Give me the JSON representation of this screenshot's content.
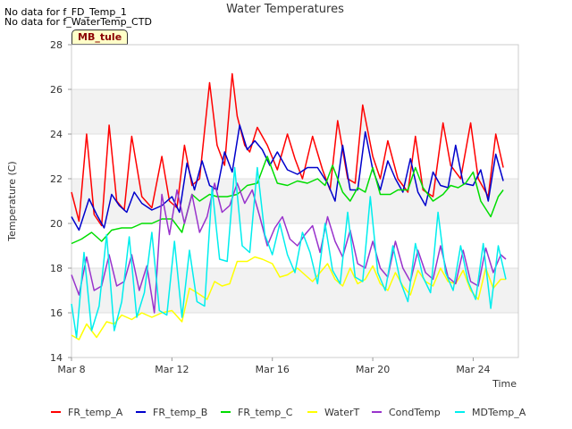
{
  "notices": [
    "No data for f_FD_Temp_1",
    "No data for f_WaterTemp_CTD"
  ],
  "site_label": "MB_tule",
  "chart_data": {
    "type": "line",
    "title": "Water Temperatures",
    "xlabel": "Time",
    "ylabel": "Temperature (C)",
    "xlim": [
      8,
      25.8
    ],
    "ylim": [
      14,
      28
    ],
    "x_ticks": [
      8,
      12,
      16,
      20,
      24
    ],
    "x_tick_labels": [
      "Mar 8",
      "Mar 12",
      "Mar 16",
      "Mar 20",
      "Mar 24"
    ],
    "y_ticks": [
      14,
      16,
      18,
      20,
      22,
      24,
      26,
      28
    ],
    "grid": "horizontal bands",
    "legend_position": "bottom",
    "series": [
      {
        "name": "FR_temp_A",
        "color": "#ff0000",
        "x": [
          8.0,
          8.3,
          8.6,
          8.9,
          9.2,
          9.5,
          9.8,
          10.1,
          10.4,
          10.8,
          11.2,
          11.6,
          11.9,
          12.2,
          12.5,
          12.8,
          13.1,
          13.5,
          13.8,
          14.1,
          14.4,
          14.6,
          14.9,
          15.1,
          15.4,
          15.8,
          16.2,
          16.6,
          16.9,
          17.2,
          17.6,
          18.0,
          18.3,
          18.6,
          19.0,
          19.3,
          19.6,
          20.0,
          20.3,
          20.6,
          21.0,
          21.4,
          21.7,
          22.0,
          22.4,
          22.8,
          23.1,
          23.5,
          23.9,
          24.2,
          24.6,
          24.9,
          25.2
        ],
        "y": [
          21.4,
          20.1,
          24.0,
          20.4,
          19.9,
          24.4,
          21.0,
          20.6,
          23.9,
          21.2,
          20.7,
          23.0,
          21.0,
          20.7,
          23.5,
          21.7,
          22.0,
          26.3,
          23.5,
          22.6,
          26.7,
          24.8,
          23.5,
          23.2,
          24.3,
          23.5,
          22.4,
          24.0,
          22.9,
          22.0,
          23.9,
          22.4,
          21.5,
          24.6,
          22.0,
          21.8,
          25.3,
          23.0,
          22.0,
          23.7,
          22.0,
          21.4,
          23.9,
          21.5,
          21.2,
          24.5,
          22.6,
          22.0,
          24.5,
          22.0,
          21.2,
          24.0,
          22.5
        ]
      },
      {
        "name": "FR_temp_B",
        "color": "#0000cc",
        "x": [
          8.0,
          8.3,
          8.7,
          9.0,
          9.3,
          9.6,
          9.9,
          10.2,
          10.5,
          10.8,
          11.2,
          11.6,
          12.0,
          12.3,
          12.6,
          12.9,
          13.2,
          13.5,
          13.8,
          14.1,
          14.4,
          14.7,
          15.0,
          15.3,
          15.6,
          15.9,
          16.2,
          16.6,
          17.0,
          17.4,
          17.8,
          18.2,
          18.5,
          18.8,
          19.1,
          19.4,
          19.7,
          20.0,
          20.3,
          20.6,
          20.9,
          21.2,
          21.5,
          21.8,
          22.1,
          22.4,
          22.7,
          23.0,
          23.3,
          23.6,
          24.0,
          24.3,
          24.6,
          24.9,
          25.2
        ],
        "y": [
          20.3,
          19.7,
          21.1,
          20.4,
          19.8,
          21.3,
          20.8,
          20.5,
          21.4,
          20.9,
          20.6,
          20.8,
          21.2,
          20.5,
          22.7,
          21.5,
          22.8,
          21.7,
          21.5,
          23.2,
          22.3,
          24.4,
          23.3,
          23.7,
          23.3,
          22.6,
          23.2,
          22.4,
          22.2,
          22.5,
          22.5,
          21.8,
          21.0,
          23.5,
          21.5,
          21.5,
          24.1,
          22.4,
          21.5,
          22.8,
          22.0,
          21.4,
          22.9,
          21.4,
          20.8,
          22.3,
          21.7,
          21.6,
          23.5,
          21.8,
          21.7,
          22.4,
          21.0,
          23.1,
          21.9
        ]
      },
      {
        "name": "FR_temp_C",
        "color": "#00dd00",
        "x": [
          8.0,
          8.4,
          8.8,
          9.2,
          9.6,
          10.0,
          10.4,
          10.8,
          11.2,
          11.6,
          12.0,
          12.4,
          12.8,
          13.1,
          13.5,
          13.8,
          14.2,
          14.6,
          15.0,
          15.4,
          15.8,
          16.2,
          16.6,
          17.0,
          17.4,
          17.8,
          18.1,
          18.4,
          18.8,
          19.1,
          19.4,
          19.7,
          20.0,
          20.3,
          20.7,
          21.0,
          21.4,
          21.7,
          22.0,
          22.4,
          22.8,
          23.1,
          23.4,
          23.7,
          24.0,
          24.3,
          24.7,
          25.0,
          25.2
        ],
        "y": [
          19.1,
          19.3,
          19.6,
          19.2,
          19.7,
          19.8,
          19.8,
          20.0,
          20.0,
          20.2,
          20.2,
          19.6,
          21.3,
          21.0,
          21.3,
          21.2,
          21.2,
          21.3,
          21.7,
          21.8,
          23.0,
          21.8,
          21.7,
          21.9,
          21.8,
          22.0,
          21.7,
          22.6,
          21.4,
          21.0,
          21.6,
          21.4,
          22.5,
          21.3,
          21.3,
          21.5,
          21.5,
          22.5,
          21.6,
          21.0,
          21.3,
          21.7,
          21.6,
          21.8,
          22.3,
          21.0,
          20.3,
          21.2,
          21.5
        ]
      },
      {
        "name": "WaterT",
        "color": "#ffff00",
        "x": [
          8.0,
          8.3,
          8.6,
          9.0,
          9.4,
          9.7,
          10.0,
          10.4,
          10.8,
          11.2,
          11.6,
          12.0,
          12.4,
          12.7,
          13.0,
          13.4,
          13.7,
          14.0,
          14.3,
          14.6,
          15.0,
          15.3,
          15.6,
          16.0,
          16.3,
          16.6,
          17.0,
          17.3,
          17.6,
          17.9,
          18.2,
          18.5,
          18.8,
          19.1,
          19.4,
          19.7,
          20.0,
          20.3,
          20.6,
          20.9,
          21.2,
          21.5,
          21.8,
          22.1,
          22.4,
          22.7,
          23.0,
          23.3,
          23.6,
          23.9,
          24.2,
          24.5,
          24.8,
          25.1,
          25.3
        ],
        "y": [
          15.0,
          14.8,
          15.5,
          14.9,
          15.6,
          15.5,
          15.9,
          15.7,
          16.0,
          15.8,
          16.0,
          16.1,
          15.6,
          17.1,
          16.9,
          16.6,
          17.4,
          17.2,
          17.3,
          18.3,
          18.3,
          18.5,
          18.4,
          18.2,
          17.6,
          17.7,
          18.0,
          17.7,
          17.4,
          17.8,
          18.2,
          17.5,
          17.2,
          18.0,
          17.3,
          17.5,
          18.1,
          17.3,
          17.0,
          17.8,
          17.2,
          16.8,
          17.9,
          17.4,
          17.2,
          18.0,
          17.4,
          17.3,
          17.9,
          17.0,
          16.6,
          18.0,
          17.1,
          17.5,
          17.5
        ]
      },
      {
        "name": "CondTemp",
        "color": "#9933cc",
        "x": [
          8.0,
          8.3,
          8.6,
          8.9,
          9.2,
          9.5,
          9.8,
          10.1,
          10.4,
          10.7,
          11.0,
          11.3,
          11.6,
          11.9,
          12.2,
          12.5,
          12.8,
          13.1,
          13.4,
          13.7,
          14.0,
          14.3,
          14.6,
          14.9,
          15.2,
          15.5,
          15.8,
          16.1,
          16.4,
          16.7,
          17.0,
          17.3,
          17.6,
          17.9,
          18.2,
          18.5,
          18.8,
          19.1,
          19.4,
          19.7,
          20.0,
          20.3,
          20.6,
          20.9,
          21.2,
          21.5,
          21.8,
          22.1,
          22.4,
          22.7,
          23.0,
          23.3,
          23.6,
          23.9,
          24.2,
          24.5,
          24.8,
          25.1,
          25.3
        ],
        "y": [
          17.7,
          16.8,
          18.5,
          17.0,
          17.2,
          18.6,
          17.2,
          17.4,
          18.6,
          17.0,
          18.1,
          16.0,
          21.3,
          19.5,
          21.5,
          20.0,
          21.3,
          19.6,
          20.3,
          21.8,
          20.5,
          20.8,
          21.8,
          20.9,
          21.5,
          20.3,
          19.0,
          19.8,
          20.3,
          19.3,
          19.0,
          19.5,
          19.9,
          18.7,
          20.3,
          19.2,
          18.5,
          19.7,
          18.2,
          18.0,
          19.2,
          18.0,
          17.6,
          19.2,
          18.0,
          17.4,
          18.8,
          17.8,
          17.5,
          19.0,
          17.6,
          17.3,
          18.8,
          17.4,
          17.2,
          18.9,
          17.8,
          18.6,
          18.4
        ]
      },
      {
        "name": "MDTemp_A",
        "color": "#00eeee",
        "x": [
          8.0,
          8.2,
          8.5,
          8.8,
          9.1,
          9.4,
          9.7,
          10.0,
          10.3,
          10.6,
          10.9,
          11.2,
          11.5,
          11.8,
          12.1,
          12.4,
          12.7,
          13.0,
          13.3,
          13.6,
          13.9,
          14.2,
          14.5,
          14.8,
          15.1,
          15.4,
          15.7,
          16.0,
          16.3,
          16.6,
          16.9,
          17.2,
          17.5,
          17.8,
          18.1,
          18.4,
          18.7,
          19.0,
          19.3,
          19.6,
          19.9,
          20.2,
          20.5,
          20.8,
          21.1,
          21.4,
          21.7,
          22.0,
          22.3,
          22.6,
          22.9,
          23.2,
          23.5,
          23.8,
          24.1,
          24.4,
          24.7,
          25.0,
          25.3
        ],
        "y": [
          16.4,
          14.9,
          18.7,
          15.2,
          16.3,
          19.5,
          15.2,
          16.5,
          19.4,
          15.8,
          16.9,
          19.6,
          16.1,
          15.9,
          19.2,
          15.8,
          18.8,
          16.5,
          16.3,
          21.6,
          18.4,
          18.3,
          22.5,
          19.0,
          18.7,
          22.5,
          19.5,
          18.6,
          20.0,
          18.6,
          17.8,
          19.6,
          18.7,
          17.3,
          20.0,
          17.9,
          17.3,
          20.5,
          17.6,
          17.4,
          21.2,
          17.8,
          17.0,
          19.0,
          17.4,
          16.5,
          19.1,
          17.6,
          16.9,
          20.5,
          17.8,
          17.0,
          19.0,
          17.4,
          16.6,
          19.1,
          16.2,
          19.0,
          17.5
        ]
      }
    ]
  }
}
